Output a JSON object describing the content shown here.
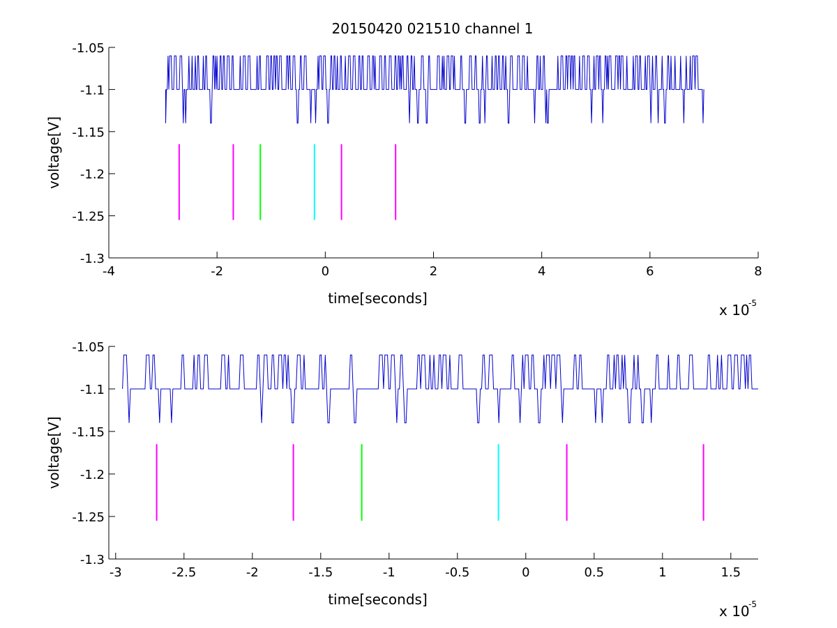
{
  "figure": {
    "title": "20150420 021510 channel 1",
    "signal_color": "#0000cc",
    "background": "#ffffff"
  },
  "chart_data": [
    {
      "type": "line",
      "title": "20150420 021510 channel 1",
      "xlabel": "time[seconds]",
      "ylabel": "voltage[V]",
      "x_exponent_label": "x 10",
      "x_exponent": "-5",
      "xlim": [
        -4,
        8
      ],
      "ylim": [
        -1.3,
        -1.05
      ],
      "xticks": [
        -4,
        -2,
        0,
        2,
        4,
        6,
        8
      ],
      "xtick_labels": [
        "-4",
        "-2",
        "0",
        "2",
        "4",
        "6",
        "8"
      ],
      "yticks": [
        -1.3,
        -1.25,
        -1.2,
        -1.15,
        -1.1,
        -1.05
      ],
      "ytick_labels": [
        "-1.3",
        "-1.25",
        "-1.2",
        "-1.15",
        "-1.1",
        "-1.05"
      ],
      "grid": false,
      "signal": {
        "color": "#0000cc",
        "x_range": [
          -2.95,
          7.0
        ],
        "baseline": -1.1,
        "high": -1.06,
        "low": -1.14
      },
      "markers": [
        {
          "x": -2.7,
          "y_range": [
            -1.255,
            -1.165
          ],
          "color": "#ff00ff"
        },
        {
          "x": -1.7,
          "y_range": [
            -1.255,
            -1.165
          ],
          "color": "#ff00ff"
        },
        {
          "x": -1.2,
          "y_range": [
            -1.255,
            -1.165
          ],
          "color": "#00ff00"
        },
        {
          "x": -0.2,
          "y_range": [
            -1.255,
            -1.165
          ],
          "color": "#00ffff"
        },
        {
          "x": 0.3,
          "y_range": [
            -1.255,
            -1.165
          ],
          "color": "#ff00ff"
        },
        {
          "x": 1.3,
          "y_range": [
            -1.255,
            -1.165
          ],
          "color": "#ff00ff"
        }
      ]
    },
    {
      "type": "line",
      "title": "",
      "xlabel": "time[seconds]",
      "ylabel": "voltage[V]",
      "x_exponent_label": "x 10",
      "x_exponent": "-5",
      "xlim": [
        -3.05,
        1.7
      ],
      "ylim": [
        -1.3,
        -1.05
      ],
      "xticks": [
        -3,
        -2.5,
        -2,
        -1.5,
        -1,
        -0.5,
        0,
        0.5,
        1,
        1.5
      ],
      "xtick_labels": [
        "-3",
        "-2.5",
        "-2",
        "-1.5",
        "-1",
        "-0.5",
        "0",
        "0.5",
        "1",
        "1.5"
      ],
      "yticks": [
        -1.3,
        -1.25,
        -1.2,
        -1.15,
        -1.1,
        -1.05
      ],
      "ytick_labels": [
        "-1.3",
        "-1.25",
        "-1.2",
        "-1.15",
        "-1.1",
        "-1.05"
      ],
      "grid": false,
      "signal": {
        "color": "#0000cc",
        "x_range": [
          -2.95,
          1.7
        ],
        "baseline": -1.1,
        "high": -1.06,
        "low": -1.14
      },
      "markers": [
        {
          "x": -2.7,
          "y_range": [
            -1.255,
            -1.165
          ],
          "color": "#ff00ff"
        },
        {
          "x": -1.7,
          "y_range": [
            -1.255,
            -1.165
          ],
          "color": "#ff00ff"
        },
        {
          "x": -1.2,
          "y_range": [
            -1.255,
            -1.165
          ],
          "color": "#00ff00"
        },
        {
          "x": -0.2,
          "y_range": [
            -1.255,
            -1.165
          ],
          "color": "#00ffff"
        },
        {
          "x": 0.3,
          "y_range": [
            -1.255,
            -1.165
          ],
          "color": "#ff00ff"
        },
        {
          "x": 1.3,
          "y_range": [
            -1.255,
            -1.165
          ],
          "color": "#ff00ff"
        }
      ]
    }
  ]
}
